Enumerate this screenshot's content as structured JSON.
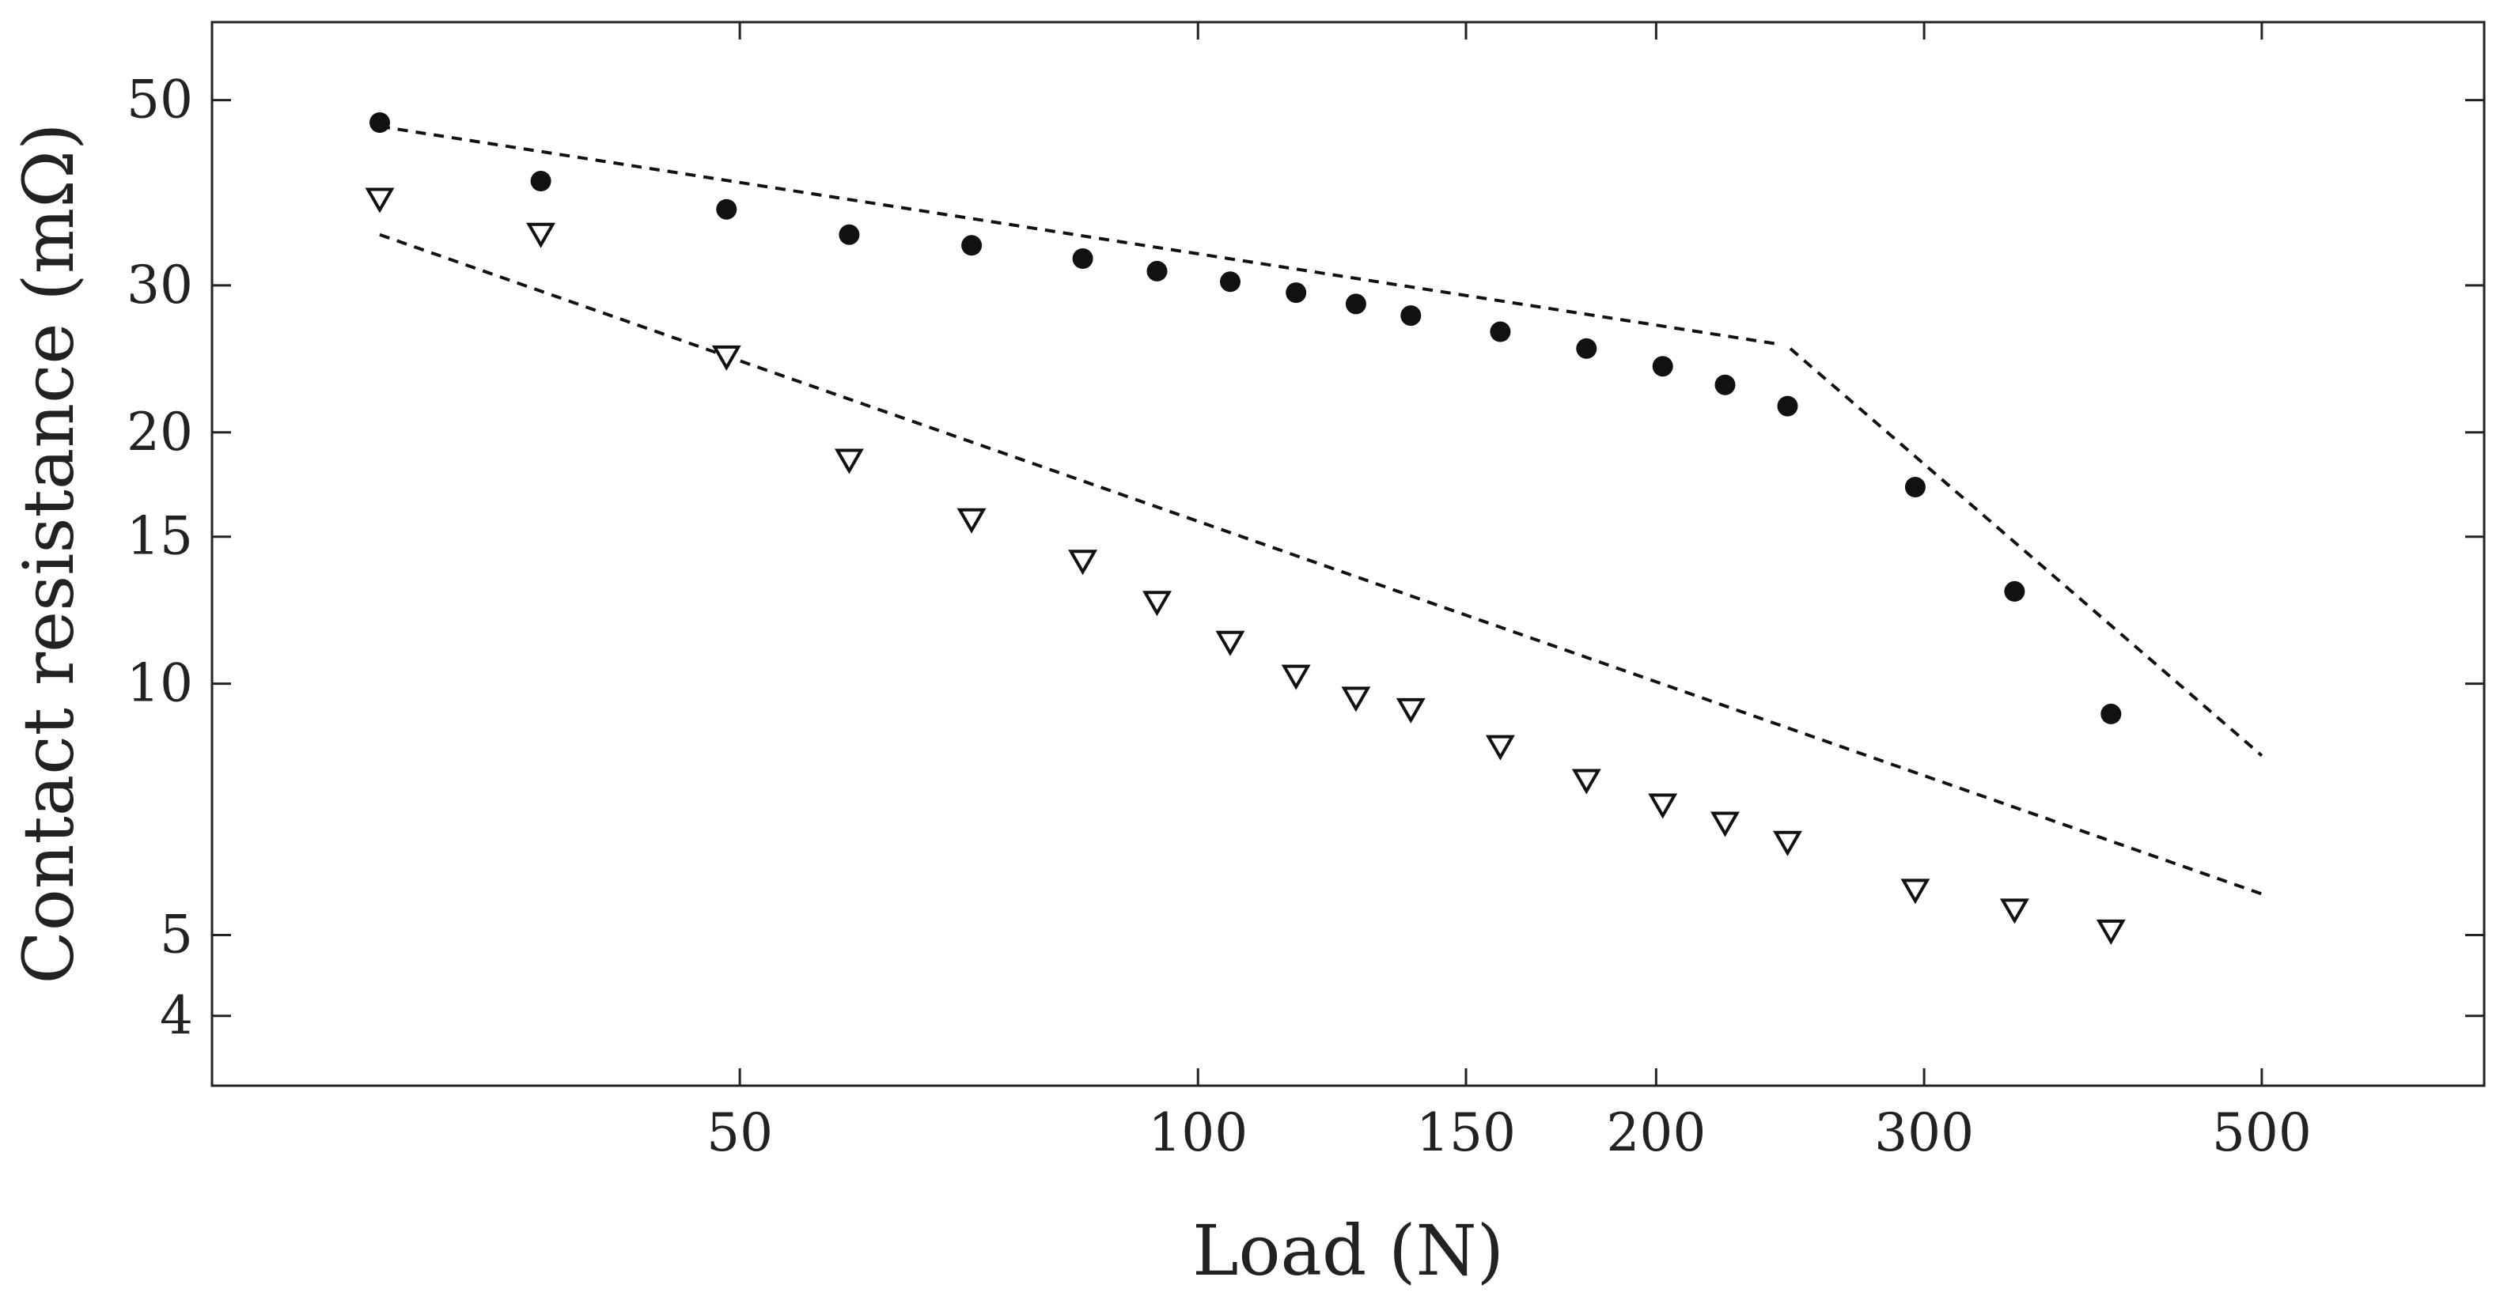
{
  "chart_data": {
    "type": "scatter",
    "xscale": "log",
    "yscale": "log",
    "xlabel": "Load (N)",
    "ylabel": "Contact resistance (mΩ)",
    "xlim": [
      22.5,
      700
    ],
    "ylim": [
      3.3,
      62
    ],
    "xticks": [
      50,
      100,
      150,
      200,
      300,
      500
    ],
    "xtick_labels": [
      "50",
      "100",
      "150",
      "200",
      "300",
      "500"
    ],
    "yticks": [
      4,
      5,
      10,
      15,
      20,
      30,
      50
    ],
    "ytick_labels": [
      "4",
      "5",
      "10",
      "15",
      "20",
      "30",
      "50"
    ],
    "series": [
      {
        "name": "filled circles",
        "marker": "circle-filled",
        "color": "#111111",
        "x": [
          29,
          37,
          49,
          59,
          71,
          84,
          94,
          105,
          116,
          127,
          138,
          158,
          180,
          202,
          222,
          244,
          296,
          344,
          398
        ],
        "y": [
          47,
          40,
          37,
          34.5,
          33.5,
          32.3,
          31.2,
          30.3,
          29.4,
          28.5,
          27.6,
          26.4,
          25.2,
          24.0,
          22.8,
          21.5,
          17.2,
          12.9,
          9.2
        ]
      },
      {
        "name": "open triangles",
        "marker": "triangle-down-open",
        "color": "#111111",
        "x": [
          29,
          37,
          49,
          59,
          71,
          84,
          94,
          105,
          116,
          127,
          138,
          158,
          180,
          202,
          222,
          244,
          296,
          344,
          398
        ],
        "y": [
          38,
          34.5,
          24.6,
          18.5,
          15.7,
          14.0,
          12.5,
          11.2,
          10.2,
          9.6,
          9.3,
          8.4,
          7.65,
          7.15,
          6.8,
          6.45,
          5.65,
          5.35,
          5.05
        ]
      }
    ],
    "fit_lines": [
      {
        "name": "circles fit low load",
        "style": "dashed",
        "x": [
          29,
          241
        ],
        "y": [
          46.5,
          25.5
        ]
      },
      {
        "name": "circles fit high load",
        "style": "dashed",
        "x": [
          245,
          500
        ],
        "y": [
          25.2,
          8.2
        ]
      },
      {
        "name": "triangles fit",
        "style": "dashed",
        "x": [
          29,
          500
        ],
        "y": [
          34.5,
          5.6
        ]
      }
    ],
    "grid": false,
    "legend": "none"
  }
}
